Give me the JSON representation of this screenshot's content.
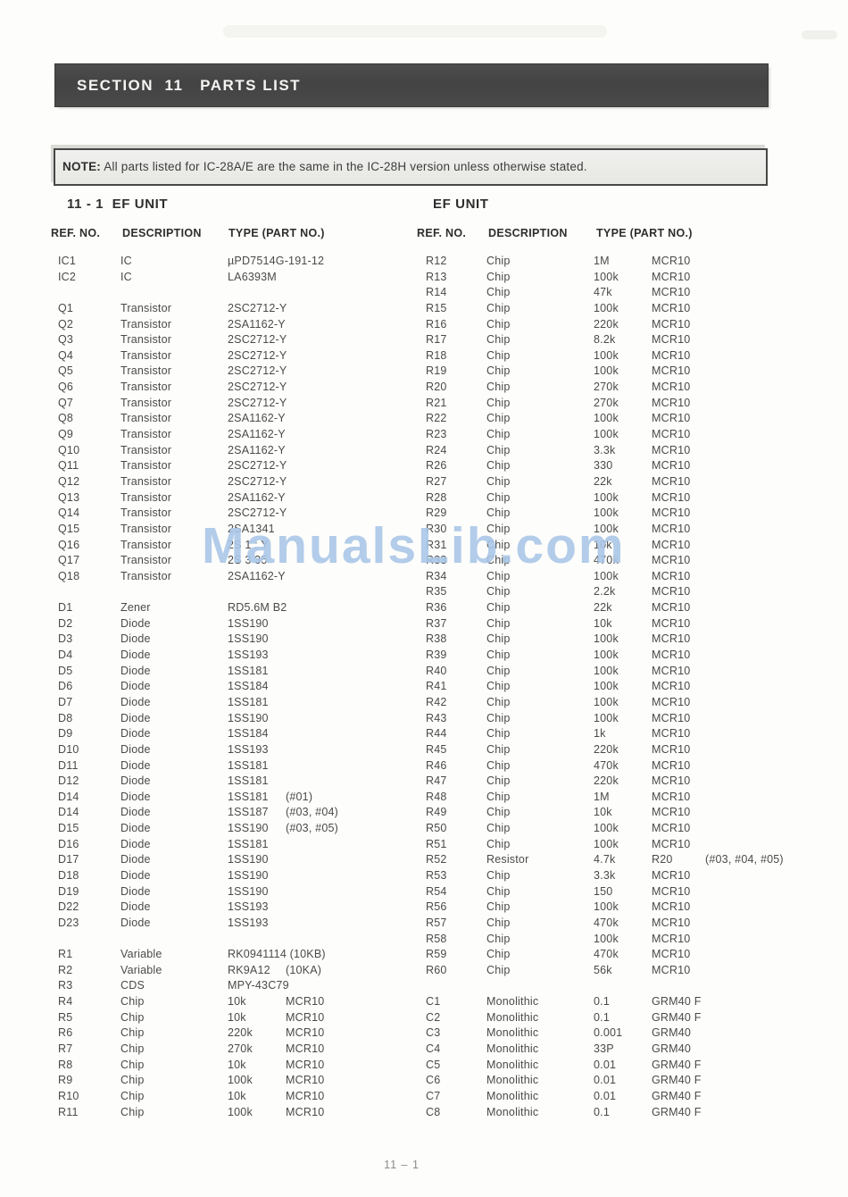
{
  "page": {
    "section_header": "SECTION  11   PARTS LIST",
    "note_label": "NOTE:",
    "note_text": " All parts listed for IC-28A/E are the same in the IC-28H version unless otherwise stated.",
    "watermark": "ManualsLib.com",
    "page_number": "11 – 1"
  },
  "left_table": {
    "heading": "11 - 1  EF UNIT",
    "columns": [
      "REF. NO.",
      "DESCRIPTION",
      "TYPE (PART NO.)"
    ],
    "rows": [
      [
        "IC1",
        "IC",
        "µPD7514G-191-12",
        "",
        ""
      ],
      [
        "IC2",
        "IC",
        "LA6393M",
        "",
        ""
      ],
      [],
      [
        "Q1",
        "Transistor",
        "2SC2712-Y",
        "",
        ""
      ],
      [
        "Q2",
        "Transistor",
        "2SA1162-Y",
        "",
        ""
      ],
      [
        "Q3",
        "Transistor",
        "2SC2712-Y",
        "",
        ""
      ],
      [
        "Q4",
        "Transistor",
        "2SC2712-Y",
        "",
        ""
      ],
      [
        "Q5",
        "Transistor",
        "2SC2712-Y",
        "",
        ""
      ],
      [
        "Q6",
        "Transistor",
        "2SC2712-Y",
        "",
        ""
      ],
      [
        "Q7",
        "Transistor",
        "2SC2712-Y",
        "",
        ""
      ],
      [
        "Q8",
        "Transistor",
        "2SA1162-Y",
        "",
        ""
      ],
      [
        "Q9",
        "Transistor",
        "2SA1162-Y",
        "",
        ""
      ],
      [
        "Q10",
        "Transistor",
        "2SA1162-Y",
        "",
        ""
      ],
      [
        "Q11",
        "Transistor",
        "2SC2712-Y",
        "",
        ""
      ],
      [
        "Q12",
        "Transistor",
        "2SC2712-Y",
        "",
        ""
      ],
      [
        "Q13",
        "Transistor",
        "2SA1162-Y",
        "",
        ""
      ],
      [
        "Q14",
        "Transistor",
        "2SC2712-Y",
        "",
        ""
      ],
      [
        "Q15",
        "Transistor",
        "2SA1341",
        "",
        ""
      ],
      [
        "Q16",
        "Transistor",
        "2S 1 : Y",
        "",
        ""
      ],
      [
        "Q17",
        "Transistor",
        "2S 3 35",
        "",
        ""
      ],
      [
        "Q18",
        "Transistor",
        "2SA1162-Y",
        "",
        ""
      ],
      [],
      [
        "D1",
        "Zener",
        "RD5.6M B2",
        "",
        ""
      ],
      [
        "D2",
        "Diode",
        "1SS190",
        "",
        ""
      ],
      [
        "D3",
        "Diode",
        "1SS190",
        "",
        ""
      ],
      [
        "D4",
        "Diode",
        "1SS193",
        "",
        ""
      ],
      [
        "D5",
        "Diode",
        "1SS181",
        "",
        ""
      ],
      [
        "D6",
        "Diode",
        "1SS184",
        "",
        ""
      ],
      [
        "D7",
        "Diode",
        "1SS181",
        "",
        ""
      ],
      [
        "D8",
        "Diode",
        "1SS190",
        "",
        ""
      ],
      [
        "D9",
        "Diode",
        "1SS184",
        "",
        ""
      ],
      [
        "D10",
        "Diode",
        "1SS193",
        "",
        ""
      ],
      [
        "D11",
        "Diode",
        "1SS181",
        "",
        ""
      ],
      [
        "D12",
        "Diode",
        "1SS181",
        "",
        ""
      ],
      [
        "D14",
        "Diode",
        "1SS181",
        "",
        "(#01)"
      ],
      [
        "D14",
        "Diode",
        "1SS187",
        "",
        "(#03, #04)"
      ],
      [
        "D15",
        "Diode",
        "1SS190",
        "",
        "(#03, #05)"
      ],
      [
        "D16",
        "Diode",
        "1SS181",
        "",
        ""
      ],
      [
        "D17",
        "Diode",
        "1SS190",
        "",
        ""
      ],
      [
        "D18",
        "Diode",
        "1SS190",
        "",
        ""
      ],
      [
        "D19",
        "Diode",
        "1SS190",
        "",
        ""
      ],
      [
        "D22",
        "Diode",
        "1SS193",
        "",
        ""
      ],
      [
        "D23",
        "Diode",
        "1SS193",
        "",
        ""
      ],
      [],
      [
        "R1",
        "Variable",
        "RK0941114 (10KB)",
        "",
        ""
      ],
      [
        "R2",
        "Variable",
        "RK9A12",
        "(10KA)",
        ""
      ],
      [
        "R3",
        "CDS",
        "MPY-43C79",
        "",
        ""
      ],
      [
        "R4",
        "Chip",
        "10k",
        "MCR10",
        ""
      ],
      [
        "R5",
        "Chip",
        "10k",
        "MCR10",
        ""
      ],
      [
        "R6",
        "Chip",
        "220k",
        "MCR10",
        ""
      ],
      [
        "R7",
        "Chip",
        "270k",
        "MCR10",
        ""
      ],
      [
        "R8",
        "Chip",
        "10k",
        "MCR10",
        ""
      ],
      [
        "R9",
        "Chip",
        "100k",
        "MCR10",
        ""
      ],
      [
        "R10",
        "Chip",
        "10k",
        "MCR10",
        ""
      ],
      [
        "R11",
        "Chip",
        "100k",
        "MCR10",
        ""
      ]
    ]
  },
  "right_table": {
    "heading": "EF UNIT",
    "columns": [
      "REF. NO.",
      "DESCRIPTION",
      "TYPE (PART NO.)"
    ],
    "rows": [
      [
        "R12",
        "Chip",
        "1M",
        "MCR10",
        ""
      ],
      [
        "R13",
        "Chip",
        "100k",
        "MCR10",
        ""
      ],
      [
        "R14",
        "Chip",
        "47k",
        "MCR10",
        ""
      ],
      [
        "R15",
        "Chip",
        "100k",
        "MCR10",
        ""
      ],
      [
        "R16",
        "Chip",
        "220k",
        "MCR10",
        ""
      ],
      [
        "R17",
        "Chip",
        "8.2k",
        "MCR10",
        ""
      ],
      [
        "R18",
        "Chip",
        "100k",
        "MCR10",
        ""
      ],
      [
        "R19",
        "Chip",
        "100k",
        "MCR10",
        ""
      ],
      [
        "R20",
        "Chip",
        "270k",
        "MCR10",
        ""
      ],
      [
        "R21",
        "Chip",
        "270k",
        "MCR10",
        ""
      ],
      [
        "R22",
        "Chip",
        "100k",
        "MCR10",
        ""
      ],
      [
        "R23",
        "Chip",
        "100k",
        "MCR10",
        ""
      ],
      [
        "R24",
        "Chip",
        "3.3k",
        "MCR10",
        ""
      ],
      [
        "R26",
        "Chip",
        "330",
        "MCR10",
        ""
      ],
      [
        "R27",
        "Chip",
        "22k",
        "MCR10",
        ""
      ],
      [
        "R28",
        "Chip",
        "100k",
        "MCR10",
        ""
      ],
      [
        "R29",
        "Chip",
        "100k",
        "MCR10",
        ""
      ],
      [
        "R30",
        "Chip",
        "100k",
        "MCR10",
        ""
      ],
      [
        "R31",
        "Chip",
        "10k",
        "MCR10",
        ""
      ],
      [
        "R33",
        "Chip",
        "470k",
        "MCR10",
        ""
      ],
      [
        "R34",
        "Chip",
        "100k",
        "MCR10",
        ""
      ],
      [
        "R35",
        "Chip",
        "2.2k",
        "MCR10",
        ""
      ],
      [
        "R36",
        "Chip",
        "22k",
        "MCR10",
        ""
      ],
      [
        "R37",
        "Chip",
        "10k",
        "MCR10",
        ""
      ],
      [
        "R38",
        "Chip",
        "100k",
        "MCR10",
        ""
      ],
      [
        "R39",
        "Chip",
        "100k",
        "MCR10",
        ""
      ],
      [
        "R40",
        "Chip",
        "100k",
        "MCR10",
        ""
      ],
      [
        "R41",
        "Chip",
        "100k",
        "MCR10",
        ""
      ],
      [
        "R42",
        "Chip",
        "100k",
        "MCR10",
        ""
      ],
      [
        "R43",
        "Chip",
        "100k",
        "MCR10",
        ""
      ],
      [
        "R44",
        "Chip",
        "1k",
        "MCR10",
        ""
      ],
      [
        "R45",
        "Chip",
        "220k",
        "MCR10",
        ""
      ],
      [
        "R46",
        "Chip",
        "470k",
        "MCR10",
        ""
      ],
      [
        "R47",
        "Chip",
        "220k",
        "MCR10",
        ""
      ],
      [
        "R48",
        "Chip",
        "1M",
        "MCR10",
        ""
      ],
      [
        "R49",
        "Chip",
        "10k",
        "MCR10",
        ""
      ],
      [
        "R50",
        "Chip",
        "100k",
        "MCR10",
        ""
      ],
      [
        "R51",
        "Chip",
        "100k",
        "MCR10",
        ""
      ],
      [
        "R52",
        "Resistor",
        "4.7k",
        "R20",
        "(#03, #04, #05)"
      ],
      [
        "R53",
        "Chip",
        "3.3k",
        "MCR10",
        ""
      ],
      [
        "R54",
        "Chip",
        "150",
        "MCR10",
        ""
      ],
      [
        "R56",
        "Chip",
        "100k",
        "MCR10",
        ""
      ],
      [
        "R57",
        "Chip",
        "470k",
        "MCR10",
        ""
      ],
      [
        "R58",
        "Chip",
        "100k",
        "MCR10",
        ""
      ],
      [
        "R59",
        "Chip",
        "470k",
        "MCR10",
        ""
      ],
      [
        "R60",
        "Chip",
        "56k",
        "MCR10",
        ""
      ],
      [],
      [
        "C1",
        "Monolithic",
        "0.1",
        "GRM40 F",
        ""
      ],
      [
        "C2",
        "Monolithic",
        "0.1",
        "GRM40 F",
        ""
      ],
      [
        "C3",
        "Monolithic",
        "0.001",
        "GRM40",
        ""
      ],
      [
        "C4",
        "Monolithic",
        "33P",
        "GRM40",
        ""
      ],
      [
        "C5",
        "Monolithic",
        "0.01",
        "GRM40 F",
        ""
      ],
      [
        "C6",
        "Monolithic",
        "0.01",
        "GRM40 F",
        ""
      ],
      [
        "C7",
        "Monolithic",
        "0.01",
        "GRM40 F",
        ""
      ],
      [
        "C8",
        "Monolithic",
        "0.1",
        "GRM40 F",
        ""
      ]
    ]
  }
}
